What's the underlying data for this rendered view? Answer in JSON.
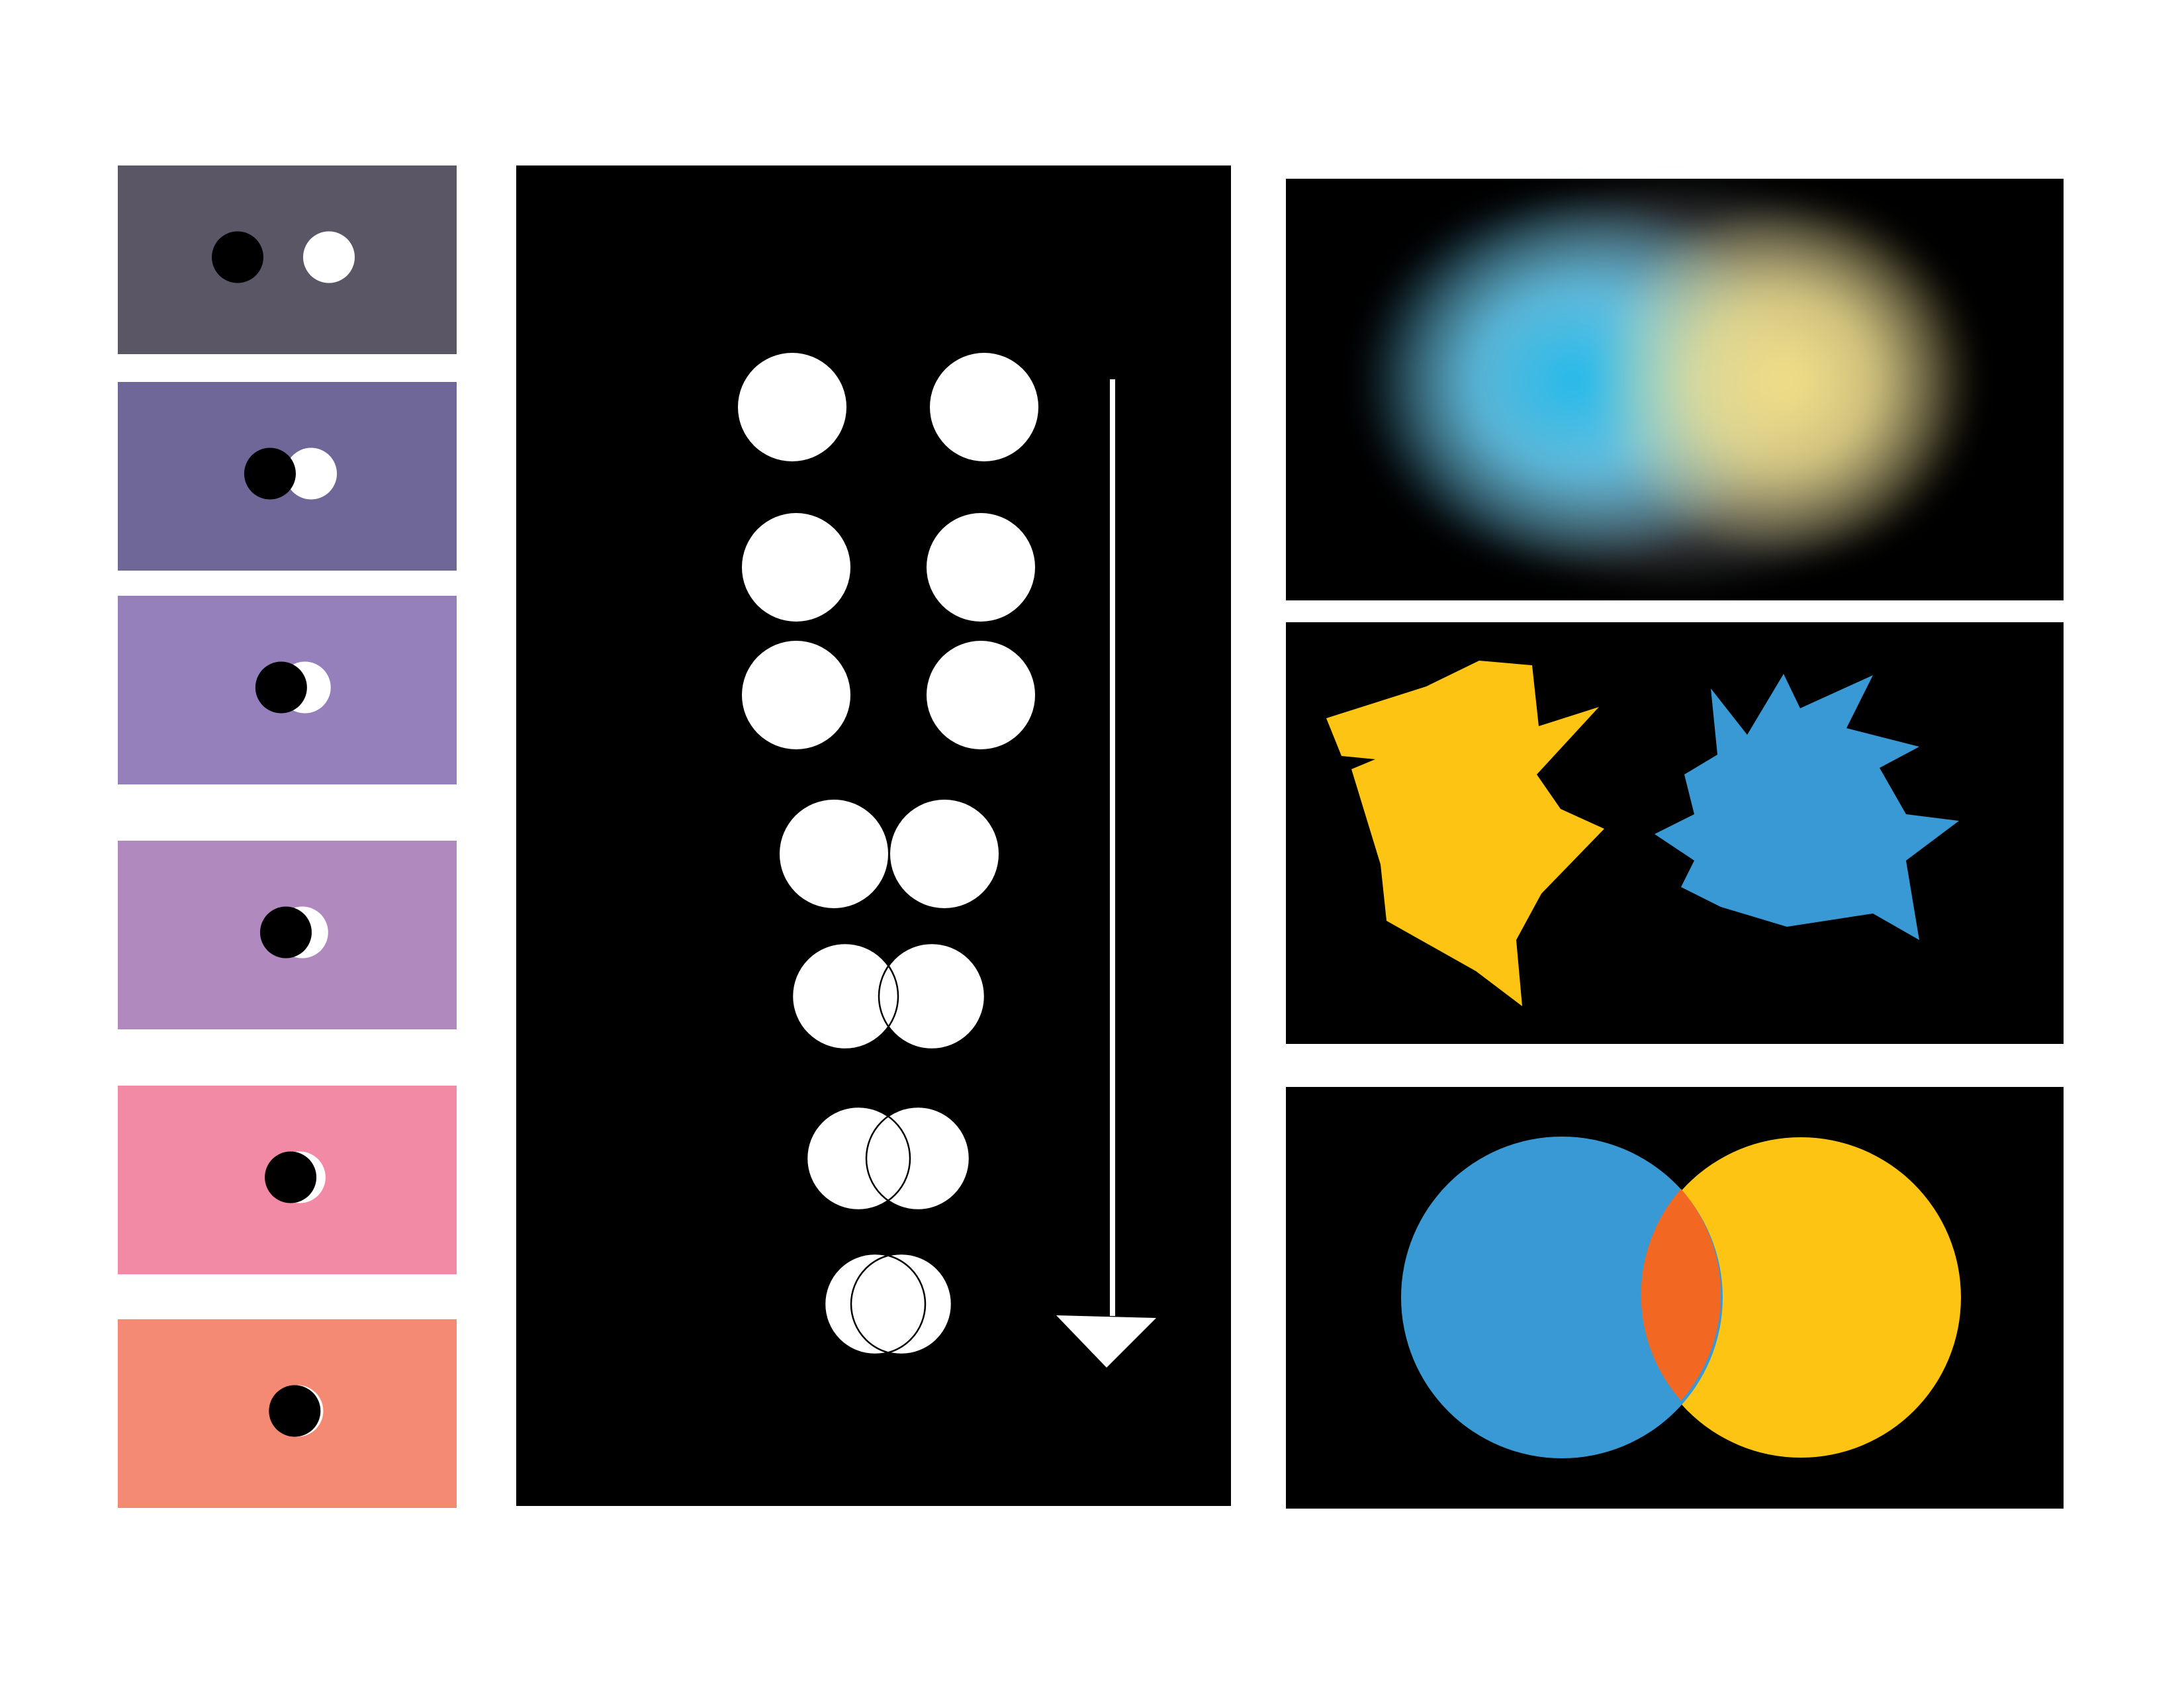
{
  "colors": {
    "page_background": "#ffffff",
    "panel_black": "#000000",
    "circle_white": "#ffffff",
    "circle_black": "#000000",
    "blue": "#3899d4",
    "yellow": "#fdc414",
    "overlap_orange": "#f26722",
    "glow_blue": "#21b9e9",
    "glow_yellow": "#f2df86"
  },
  "eclipse_panels": [
    {
      "background": "#5b5666",
      "overlap_fraction": 0.0
    },
    {
      "background": "#6f6797",
      "overlap_fraction": 0.55
    },
    {
      "background": "#9680bc",
      "overlap_fraction": 0.74
    },
    {
      "background": "#b089be",
      "overlap_fraction": 0.82
    },
    {
      "background": "#f289a5",
      "overlap_fraction": 0.9
    },
    {
      "background": "#f58a74",
      "overlap_fraction": 0.97
    }
  ],
  "merge_sequence": [
    {
      "overlap_fraction": 0.0
    },
    {
      "overlap_fraction": 0.0
    },
    {
      "overlap_fraction": 0.0
    },
    {
      "overlap_fraction": 0.0
    },
    {
      "overlap_fraction": 0.12
    },
    {
      "overlap_fraction": 0.25
    },
    {
      "overlap_fraction": 0.35
    }
  ],
  "arrow": {
    "direction": "down"
  },
  "right_panels": [
    {
      "kind": "glow-blend",
      "colors": [
        "blue",
        "yellow"
      ]
    },
    {
      "kind": "spiky-suns",
      "colors": [
        "yellow",
        "blue"
      ]
    },
    {
      "kind": "venn-overlap",
      "colors": [
        "blue",
        "yellow",
        "overlap_orange"
      ]
    }
  ]
}
